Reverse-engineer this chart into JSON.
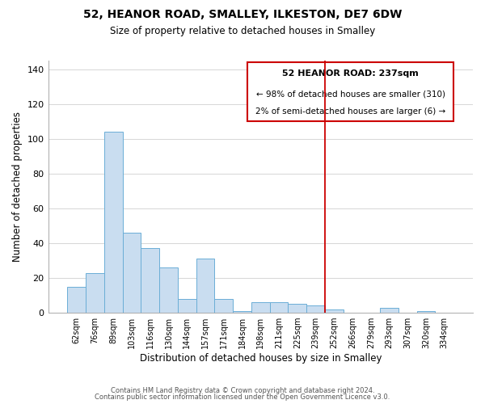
{
  "title": "52, HEANOR ROAD, SMALLEY, ILKESTON, DE7 6DW",
  "subtitle": "Size of property relative to detached houses in Smalley",
  "xlabel": "Distribution of detached houses by size in Smalley",
  "ylabel": "Number of detached properties",
  "bar_labels": [
    "62sqm",
    "76sqm",
    "89sqm",
    "103sqm",
    "116sqm",
    "130sqm",
    "144sqm",
    "157sqm",
    "171sqm",
    "184sqm",
    "198sqm",
    "211sqm",
    "225sqm",
    "239sqm",
    "252sqm",
    "266sqm",
    "279sqm",
    "293sqm",
    "307sqm",
    "320sqm",
    "334sqm"
  ],
  "bar_heights": [
    15,
    23,
    104,
    46,
    37,
    26,
    8,
    31,
    8,
    1,
    6,
    6,
    5,
    4,
    2,
    0,
    0,
    3,
    0,
    1,
    0
  ],
  "bar_color": "#c9ddf0",
  "bar_edge_color": "#6baed6",
  "ylim": [
    0,
    145
  ],
  "yticks": [
    0,
    20,
    40,
    60,
    80,
    100,
    120,
    140
  ],
  "vline_color": "#cc0000",
  "legend_title": "52 HEANOR ROAD: 237sqm",
  "legend_line1": "← 98% of detached houses are smaller (310)",
  "legend_line2": "2% of semi-detached houses are larger (6) →",
  "footer1": "Contains HM Land Registry data © Crown copyright and database right 2024.",
  "footer2": "Contains public sector information licensed under the Open Government Licence v3.0."
}
